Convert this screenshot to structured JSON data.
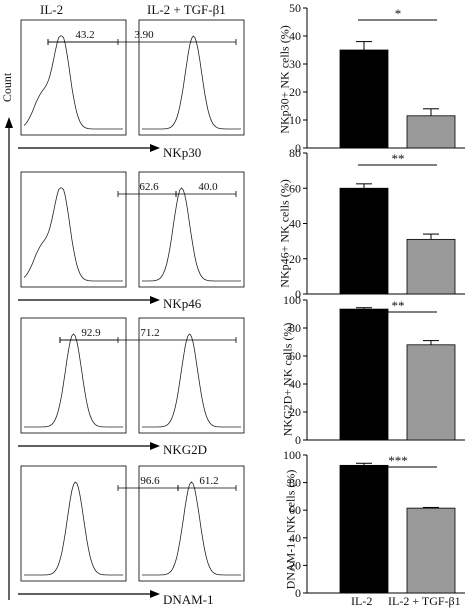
{
  "figure": {
    "columns": [
      "IL-2",
      "IL-2 + TGF-β1"
    ],
    "count_label": "Count",
    "bar_xlabels": [
      "IL-2",
      "IL-2 + TGF-β1"
    ],
    "colors": {
      "il2_bar": "#000000",
      "tgf_bar": "#999999"
    }
  },
  "chart_data": [
    {
      "type": "histogram",
      "marker": "NKp30",
      "gate_values": [
        "43.2",
        "3.90"
      ]
    },
    {
      "type": "histogram",
      "marker": "NKp46",
      "gate_values": [
        "62.6",
        "40.0"
      ]
    },
    {
      "type": "histogram",
      "marker": "NKG2D",
      "gate_values": [
        "92.9",
        "71.2"
      ]
    },
    {
      "type": "histogram",
      "marker": "DNAM-1",
      "gate_values": [
        "96.6",
        "61.2"
      ]
    },
    {
      "type": "bar",
      "categories": [
        "IL-2",
        "IL-2 + TGF-β1"
      ],
      "values": [
        35,
        11.5
      ],
      "errors": [
        3,
        2.5
      ],
      "ylabel": "NKp30+ NK cells (%)",
      "ylim": [
        0,
        50
      ],
      "yticks": [
        "0",
        "10",
        "20",
        "30",
        "40",
        "50"
      ],
      "significance": "*"
    },
    {
      "type": "bar",
      "categories": [
        "IL-2",
        "IL-2 + TGF-β1"
      ],
      "values": [
        60,
        31
      ],
      "errors": [
        2.5,
        3
      ],
      "ylabel": "NKp46+ NK cells (%)",
      "ylim": [
        0,
        80
      ],
      "yticks": [
        "0",
        "20",
        "40",
        "60",
        "80"
      ],
      "significance": "**"
    },
    {
      "type": "bar",
      "categories": [
        "IL-2",
        "IL-2 + TGF-β1"
      ],
      "values": [
        93.5,
        68
      ],
      "errors": [
        1,
        3
      ],
      "ylabel": "NKG2D+ NK cells (%)",
      "ylim": [
        0,
        100
      ],
      "yticks": [
        "0",
        "20",
        "40",
        "60",
        "80",
        "100"
      ],
      "significance": "**"
    },
    {
      "type": "bar",
      "categories": [
        "IL-2",
        "IL-2 + TGF-β1"
      ],
      "values": [
        92.5,
        61.5
      ],
      "errors": [
        1.5,
        0.5
      ],
      "ylabel": "DNAM-1+ NK cells (%)",
      "ylim": [
        0,
        100
      ],
      "yticks": [
        "0",
        "20",
        "40",
        "60",
        "80",
        "100"
      ],
      "significance": "***"
    }
  ]
}
